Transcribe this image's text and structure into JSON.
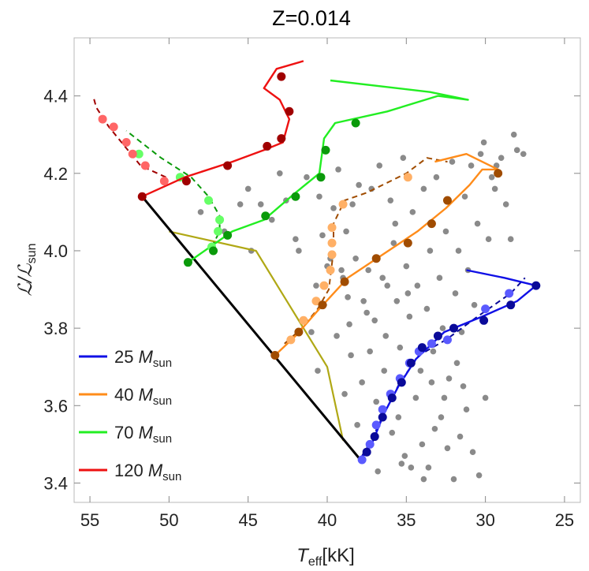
{
  "chart_data": {
    "type": "scatter",
    "title": "Z=0.014",
    "xlabel": {
      "symbol": "T",
      "sub": "eff",
      "unit": "[kK]"
    },
    "ylabel": {
      "symbol": "ℒ/ℒ",
      "sub": "sun"
    },
    "xlim": [
      56,
      24
    ],
    "ylim": [
      3.35,
      4.55
    ],
    "x_reversed": true,
    "x_ticks": [
      55,
      50,
      45,
      40,
      35,
      30,
      25
    ],
    "y_ticks": [
      3.4,
      3.6,
      3.8,
      4.0,
      4.2,
      4.4
    ],
    "y_tick_labels": [
      "3.4",
      "3.6",
      "3.8",
      "4.0",
      "4.2",
      "4.4"
    ],
    "grid": false,
    "legend_position": "bottom-left",
    "legend": [
      {
        "label": "25 ",
        "label_sub": "sun",
        "label_italic": "M",
        "color": "#1010e6"
      },
      {
        "label": "40 ",
        "label_sub": "sun",
        "label_italic": "M",
        "color": "#ff8c1a"
      },
      {
        "label": "70 ",
        "label_sub": "sun",
        "label_italic": "M",
        "color": "#22ee22"
      },
      {
        "label": "120 ",
        "label_sub": "sun",
        "label_italic": "M",
        "color": "#ee1111"
      }
    ],
    "zams_line": {
      "color": "#000000",
      "points": [
        [
          51.7,
          4.14
        ],
        [
          37.9,
          3.46
        ]
      ]
    },
    "boundary_line": {
      "color": "#b0a815",
      "points": [
        [
          50.0,
          4.05
        ],
        [
          44.5,
          4.0
        ],
        [
          40.0,
          3.7
        ],
        [
          39.0,
          3.51
        ]
      ]
    },
    "tracks": [
      {
        "mass": 25,
        "color": "#1010e6",
        "point_color": "#0a0a99",
        "dashed_color": "#0a0a99",
        "dashed_point_color": "#5a5aff",
        "solid": [
          [
            37.9,
            3.46
          ],
          [
            37.2,
            3.5
          ],
          [
            36.4,
            3.58
          ],
          [
            35.5,
            3.65
          ],
          [
            34.4,
            3.72
          ],
          [
            32.6,
            3.79
          ],
          [
            30.2,
            3.83
          ],
          [
            28.0,
            3.87
          ],
          [
            26.8,
            3.91
          ],
          [
            28.8,
            3.93
          ],
          [
            31.2,
            3.95
          ]
        ],
        "solid_points": [
          [
            37.5,
            3.48
          ],
          [
            37.0,
            3.52
          ],
          [
            36.5,
            3.57
          ],
          [
            35.9,
            3.62
          ],
          [
            35.3,
            3.66
          ],
          [
            34.7,
            3.71
          ],
          [
            34.0,
            3.75
          ],
          [
            33.0,
            3.78
          ],
          [
            32.0,
            3.8
          ],
          [
            30.1,
            3.82
          ],
          [
            28.4,
            3.86
          ],
          [
            26.8,
            3.91
          ]
        ],
        "dashed": [
          [
            37.8,
            3.47
          ],
          [
            37.1,
            3.52
          ],
          [
            36.4,
            3.58
          ],
          [
            35.4,
            3.66
          ],
          [
            34.2,
            3.73
          ],
          [
            32.5,
            3.77
          ],
          [
            30.5,
            3.83
          ],
          [
            28.4,
            3.89
          ],
          [
            27.5,
            3.93
          ]
        ],
        "dashed_points": [
          [
            37.8,
            3.46
          ],
          [
            37.3,
            3.5
          ],
          [
            36.9,
            3.55
          ],
          [
            36.5,
            3.59
          ],
          [
            36.0,
            3.63
          ],
          [
            35.4,
            3.67
          ],
          [
            34.8,
            3.71
          ],
          [
            34.2,
            3.74
          ],
          [
            33.4,
            3.76
          ],
          [
            32.4,
            3.77
          ],
          [
            30.0,
            3.85
          ],
          [
            28.5,
            3.89
          ]
        ]
      },
      {
        "mass": 40,
        "color": "#ff8c1a",
        "point_color": "#a04c00",
        "dashed_color": "#a04c00",
        "dashed_point_color": "#ffb066",
        "solid": [
          [
            43.3,
            3.73
          ],
          [
            42.0,
            3.78
          ],
          [
            40.5,
            3.85
          ],
          [
            38.7,
            3.93
          ],
          [
            36.5,
            3.99
          ],
          [
            34.3,
            4.05
          ],
          [
            32.5,
            4.11
          ],
          [
            31.0,
            4.17
          ],
          [
            30.2,
            4.21
          ],
          [
            29.2,
            4.21
          ],
          [
            31.2,
            4.25
          ],
          [
            33.2,
            4.23
          ]
        ],
        "solid_points": [
          [
            43.3,
            3.73
          ],
          [
            41.8,
            3.79
          ],
          [
            40.3,
            3.86
          ],
          [
            38.9,
            3.92
          ],
          [
            36.9,
            3.98
          ],
          [
            34.9,
            4.02
          ],
          [
            33.4,
            4.07
          ],
          [
            32.4,
            4.13
          ],
          [
            29.2,
            4.2
          ]
        ],
        "dashed": [
          [
            42.7,
            3.76
          ],
          [
            41.6,
            3.8
          ],
          [
            40.6,
            3.85
          ],
          [
            39.9,
            3.9
          ],
          [
            39.6,
            4.0
          ],
          [
            39.6,
            4.07
          ],
          [
            38.9,
            4.13
          ],
          [
            37.5,
            4.15
          ],
          [
            35.0,
            4.2
          ],
          [
            33.7,
            4.24
          ],
          [
            32.4,
            4.23
          ]
        ],
        "dashed_points": [
          [
            42.3,
            3.77
          ],
          [
            41.5,
            3.82
          ],
          [
            40.7,
            3.87
          ],
          [
            40.2,
            3.91
          ],
          [
            39.8,
            3.95
          ],
          [
            39.7,
            3.99
          ],
          [
            39.7,
            4.02
          ],
          [
            39.7,
            4.06
          ],
          [
            39.0,
            4.12
          ],
          [
            34.9,
            4.19
          ]
        ]
      },
      {
        "mass": 70,
        "color": "#22ee22",
        "point_color": "#0a9a0a",
        "dashed_color": "#0a9a0a",
        "dashed_point_color": "#66ff66",
        "solid": [
          [
            48.8,
            3.97
          ],
          [
            46.0,
            4.05
          ],
          [
            44.0,
            4.08
          ],
          [
            42.0,
            4.15
          ],
          [
            40.5,
            4.2
          ],
          [
            40.2,
            4.29
          ],
          [
            39.5,
            4.33
          ],
          [
            36.2,
            4.36
          ],
          [
            33.0,
            4.4
          ],
          [
            31.1,
            4.39
          ],
          [
            33.5,
            4.41
          ],
          [
            39.8,
            4.44
          ]
        ],
        "solid_points": [
          [
            48.8,
            3.97
          ],
          [
            47.2,
            4.0
          ],
          [
            46.3,
            4.04
          ],
          [
            43.9,
            4.09
          ],
          [
            42.0,
            4.14
          ],
          [
            40.4,
            4.19
          ],
          [
            40.1,
            4.26
          ],
          [
            38.2,
            4.33
          ]
        ],
        "dashed": [
          [
            47.3,
            4.01
          ],
          [
            46.8,
            4.05
          ],
          [
            46.8,
            4.09
          ],
          [
            47.5,
            4.14
          ],
          [
            48.6,
            4.19
          ],
          [
            50.5,
            4.24
          ],
          [
            52.7,
            4.31
          ]
        ],
        "dashed_points": [
          [
            47.3,
            4.01
          ],
          [
            46.9,
            4.05
          ],
          [
            46.8,
            4.08
          ],
          [
            47.5,
            4.13
          ],
          [
            49.3,
            4.19
          ],
          [
            51.9,
            4.25
          ]
        ]
      },
      {
        "mass": 120,
        "color": "#ee1111",
        "point_color": "#a00000",
        "dashed_color": "#a00000",
        "dashed_point_color": "#ff6666",
        "solid": [
          [
            51.7,
            4.14
          ],
          [
            49.0,
            4.19
          ],
          [
            46.0,
            4.23
          ],
          [
            44.0,
            4.26
          ],
          [
            42.8,
            4.28
          ],
          [
            42.4,
            4.34
          ],
          [
            43.0,
            4.39
          ],
          [
            44.0,
            4.42
          ],
          [
            43.2,
            4.47
          ],
          [
            41.5,
            4.49
          ]
        ],
        "solid_points": [
          [
            51.7,
            4.14
          ],
          [
            48.9,
            4.18
          ],
          [
            46.3,
            4.22
          ],
          [
            43.8,
            4.27
          ],
          [
            42.9,
            4.29
          ],
          [
            42.4,
            4.36
          ],
          [
            42.9,
            4.45
          ]
        ],
        "dashed": [
          [
            50.2,
            4.19
          ],
          [
            51.8,
            4.22
          ],
          [
            52.8,
            4.27
          ],
          [
            53.8,
            4.32
          ],
          [
            54.6,
            4.37
          ],
          [
            54.8,
            4.4
          ]
        ],
        "dashed_points": [
          [
            50.3,
            4.18
          ],
          [
            51.5,
            4.22
          ],
          [
            52.3,
            4.25
          ],
          [
            52.7,
            4.28
          ],
          [
            53.5,
            4.32
          ],
          [
            54.2,
            4.34
          ]
        ]
      }
    ],
    "observed_stars": {
      "color": "#8a8a8a",
      "points": [
        [
          48.0,
          4.1
        ],
        [
          46.5,
          4.05
        ],
        [
          45.5,
          4.12
        ],
        [
          45.0,
          4.16
        ],
        [
          44.8,
          4.0
        ],
        [
          44.2,
          4.12
        ],
        [
          43.5,
          4.08
        ],
        [
          43.0,
          4.2
        ],
        [
          42.6,
          4.13
        ],
        [
          42.0,
          4.03
        ],
        [
          41.8,
          4.0
        ],
        [
          41.3,
          4.19
        ],
        [
          40.5,
          4.14
        ],
        [
          40.3,
          4.04
        ],
        [
          40.0,
          3.96
        ],
        [
          39.8,
          3.98
        ],
        [
          39.6,
          4.11
        ],
        [
          39.3,
          4.21
        ],
        [
          39.0,
          3.93
        ],
        [
          38.8,
          4.05
        ],
        [
          38.7,
          3.88
        ],
        [
          38.4,
          4.12
        ],
        [
          38.2,
          3.98
        ],
        [
          38.0,
          4.17
        ],
        [
          37.7,
          3.87
        ],
        [
          37.4,
          3.95
        ],
        [
          37.2,
          4.16
        ],
        [
          37.0,
          3.82
        ],
        [
          36.7,
          4.22
        ],
        [
          36.5,
          3.93
        ],
        [
          36.3,
          3.78
        ],
        [
          36.0,
          4.13
        ],
        [
          35.8,
          4.02
        ],
        [
          35.6,
          3.87
        ],
        [
          35.4,
          3.75
        ],
        [
          35.2,
          4.24
        ],
        [
          35.0,
          3.96
        ],
        [
          34.8,
          3.83
        ],
        [
          34.6,
          4.1
        ],
        [
          34.3,
          3.91
        ],
        [
          34.1,
          3.69
        ],
        [
          33.9,
          4.16
        ],
        [
          33.7,
          3.85
        ],
        [
          33.5,
          4.0
        ],
        [
          33.3,
          3.74
        ],
        [
          33.1,
          4.19
        ],
        [
          32.9,
          3.93
        ],
        [
          32.7,
          3.8
        ],
        [
          32.5,
          4.05
        ],
        [
          32.3,
          3.67
        ],
        [
          32.1,
          4.23
        ],
        [
          31.9,
          3.89
        ],
        [
          31.7,
          4.0
        ],
        [
          31.5,
          3.79
        ],
        [
          31.3,
          4.14
        ],
        [
          31.1,
          3.95
        ],
        [
          30.9,
          4.22
        ],
        [
          30.7,
          3.86
        ],
        [
          30.5,
          4.07
        ],
        [
          30.3,
          4.25
        ],
        [
          30.1,
          4.28
        ],
        [
          29.8,
          4.03
        ],
        [
          29.6,
          4.19
        ],
        [
          29.3,
          4.22
        ],
        [
          29.0,
          4.24
        ],
        [
          28.7,
          4.12
        ],
        [
          28.4,
          4.03
        ],
        [
          28.2,
          4.3
        ],
        [
          28.0,
          4.26
        ],
        [
          27.6,
          4.25
        ],
        [
          41.0,
          3.79
        ],
        [
          40.6,
          3.69
        ],
        [
          40.2,
          3.86
        ],
        [
          39.4,
          3.78
        ],
        [
          38.9,
          3.63
        ],
        [
          38.5,
          3.73
        ],
        [
          38.1,
          3.55
        ],
        [
          37.8,
          3.66
        ],
        [
          37.3,
          3.74
        ],
        [
          36.9,
          3.61
        ],
        [
          36.4,
          3.69
        ],
        [
          35.9,
          3.53
        ],
        [
          35.5,
          3.57
        ],
        [
          35.1,
          3.47
        ],
        [
          34.7,
          3.44
        ],
        [
          34.4,
          3.62
        ],
        [
          34.0,
          3.5
        ],
        [
          33.6,
          3.44
        ],
        [
          33.2,
          3.54
        ],
        [
          32.8,
          3.57
        ],
        [
          32.4,
          3.49
        ],
        [
          32.0,
          3.41
        ],
        [
          31.6,
          3.52
        ],
        [
          31.2,
          3.59
        ],
        [
          30.8,
          3.48
        ],
        [
          30.4,
          3.42
        ],
        [
          30.0,
          3.62
        ],
        [
          36.8,
          3.43
        ],
        [
          35.3,
          3.45
        ],
        [
          33.9,
          3.41
        ],
        [
          37.5,
          3.84
        ],
        [
          38.6,
          3.81
        ],
        [
          39.1,
          3.95
        ],
        [
          36.2,
          3.91
        ],
        [
          35.7,
          4.07
        ],
        [
          34.9,
          3.89
        ],
        [
          33.4,
          3.66
        ],
        [
          32.6,
          3.62
        ],
        [
          31.8,
          3.71
        ],
        [
          31.4,
          3.65
        ],
        [
          29.4,
          4.16
        ],
        [
          40.7,
          3.91
        ]
      ]
    }
  }
}
